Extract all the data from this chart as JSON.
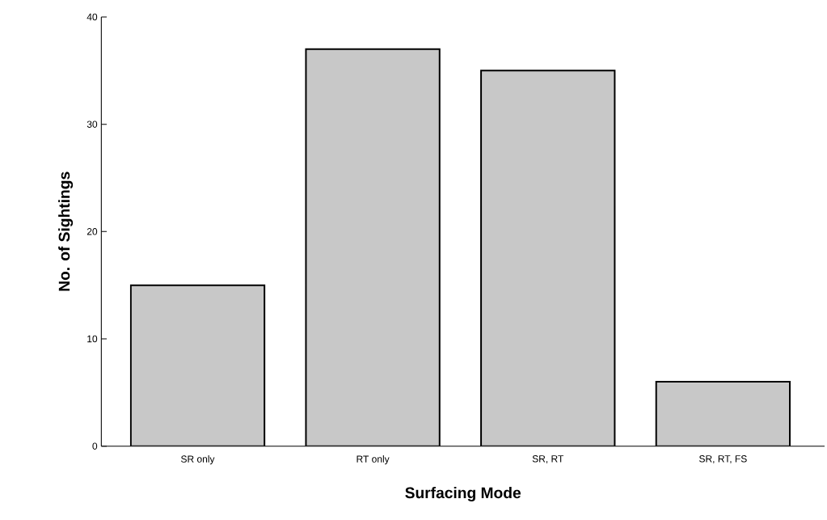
{
  "chart_data": {
    "type": "bar",
    "xlabel": "Surfacing Mode",
    "ylabel": "No. of Sightings",
    "categories": [
      "SR only",
      "RT only",
      "SR, RT",
      "SR, RT, FS"
    ],
    "values": [
      15,
      37,
      35,
      6
    ],
    "color": "#c8c8c8",
    "ylim": [
      0,
      40
    ],
    "yticks": [
      0,
      10,
      20,
      30,
      40
    ],
    "grid": false
  }
}
